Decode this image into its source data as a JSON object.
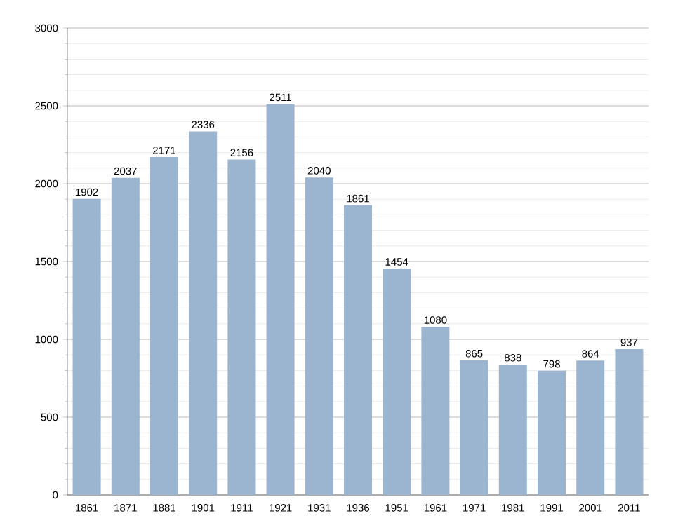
{
  "chart_data": {
    "type": "bar",
    "categories": [
      "1861",
      "1871",
      "1881",
      "1901",
      "1911",
      "1921",
      "1931",
      "1936",
      "1951",
      "1961",
      "1971",
      "1981",
      "1991",
      "2001",
      "2011"
    ],
    "values": [
      1902,
      2037,
      2171,
      2336,
      2156,
      2511,
      2040,
      1861,
      1454,
      1080,
      865,
      838,
      798,
      864,
      937
    ],
    "color": "#9bb4d0",
    "ylim": [
      0,
      3000
    ],
    "yticks": [
      0,
      500,
      1000,
      1500,
      2000,
      2500,
      3000
    ],
    "grid": "y",
    "data_labels": true
  }
}
